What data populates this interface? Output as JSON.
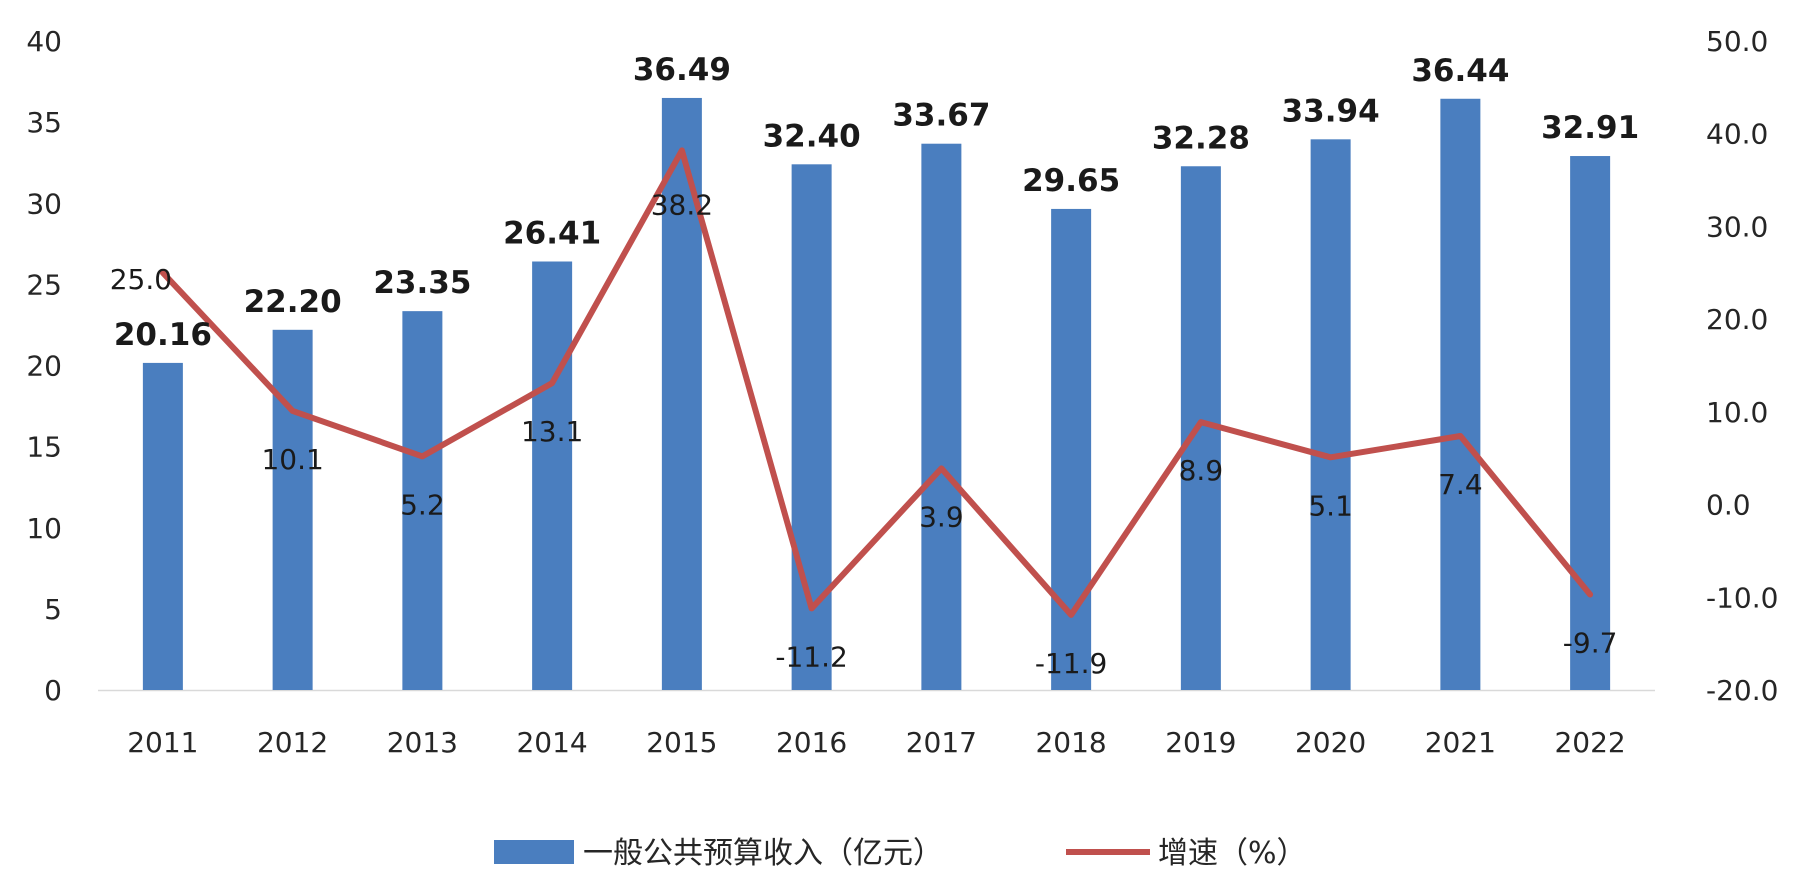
{
  "chart_data": {
    "type": "bar",
    "categories": [
      "2011",
      "2012",
      "2013",
      "2014",
      "2015",
      "2016",
      "2017",
      "2018",
      "2019",
      "2020",
      "2021",
      "2022"
    ],
    "series": [
      {
        "name": "一般公共预算收入（亿元）",
        "type": "bar",
        "axis": "left",
        "color": "#4a7ebf",
        "values": [
          20.16,
          22.2,
          23.35,
          26.41,
          36.49,
          32.4,
          33.67,
          29.65,
          32.28,
          33.94,
          36.44,
          32.91
        ],
        "labels": [
          "20.16",
          "22.20",
          "23.35",
          "26.41",
          "36.49",
          "32.40",
          "33.67",
          "29.65",
          "32.28",
          "33.94",
          "36.44",
          "32.91"
        ]
      },
      {
        "name": "增速（%）",
        "type": "line",
        "axis": "right",
        "color": "#c0504d",
        "values": [
          25.0,
          10.1,
          5.2,
          13.1,
          38.2,
          -11.2,
          3.9,
          -11.9,
          8.9,
          5.1,
          7.4,
          -9.7
        ],
        "labels": [
          "25.0",
          "10.1",
          "5.2",
          "13.1",
          "38.2",
          "-11.2",
          "3.9",
          "-11.9",
          "8.9",
          "5.1",
          "7.4",
          "-9.7"
        ]
      }
    ],
    "y_left": {
      "min": 0,
      "max": 40,
      "ticks": [
        "0",
        "5",
        "10",
        "15",
        "20",
        "25",
        "30",
        "35",
        "40"
      ]
    },
    "y_right": {
      "min": -20,
      "max": 50,
      "ticks": [
        "-20.0",
        "-10.0",
        "0.0",
        "10.0",
        "20.0",
        "30.0",
        "40.0",
        "50.0"
      ]
    },
    "legend": {
      "placement": "bottom-center",
      "bar_label": "一般公共预算收入（亿元）",
      "line_label": "增速（%）"
    },
    "grid": false
  }
}
